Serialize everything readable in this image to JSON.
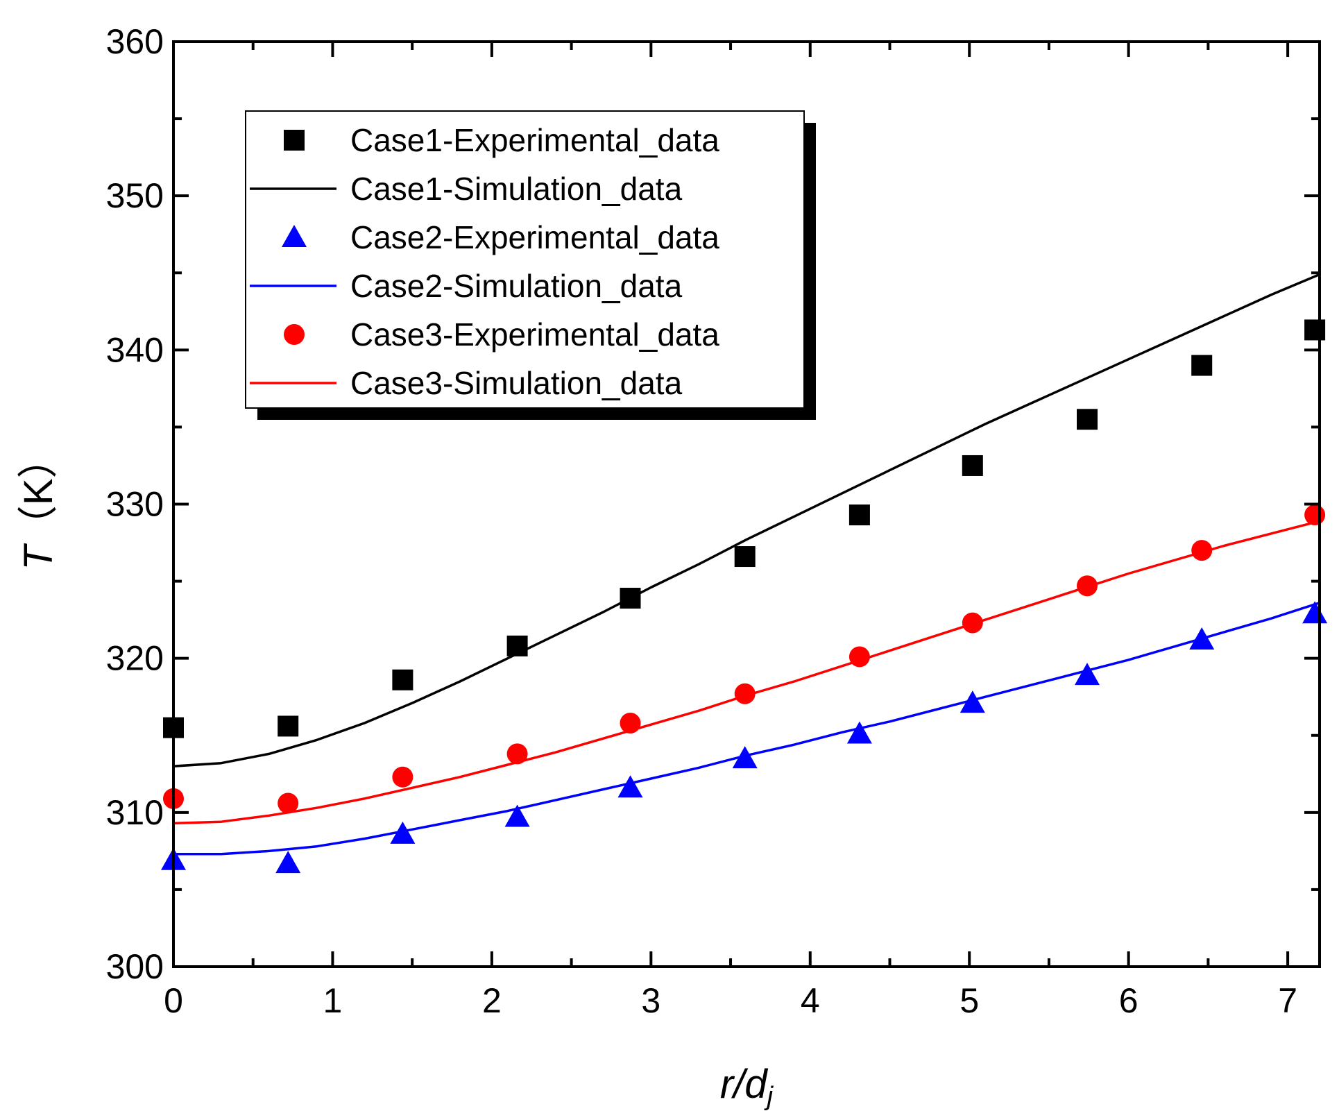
{
  "chart_data": {
    "type": "line",
    "xlabel": {
      "var": "r/d",
      "sub": "j"
    },
    "ylabel": {
      "var": "T",
      "unit": "（K）"
    },
    "xlim": [
      0,
      7.2
    ],
    "ylim": [
      300,
      360
    ],
    "xticks": [
      "0",
      "1",
      "2",
      "3",
      "4",
      "5",
      "6",
      "7"
    ],
    "yticks": [
      "300",
      "310",
      "320",
      "330",
      "340",
      "350",
      "360"
    ],
    "legend_position": "top-left",
    "colors": {
      "case1": "#000000",
      "case2": "#0000ff",
      "case3": "#ff0000"
    },
    "series": [
      {
        "name": "Case1-Experimental_data",
        "kind": "scatter",
        "marker": "square",
        "color": "#000000",
        "x": [
          0,
          0.72,
          1.44,
          2.16,
          2.87,
          3.59,
          4.31,
          5.02,
          5.74,
          6.46,
          7.17
        ],
        "y": [
          315.5,
          315.6,
          318.6,
          320.8,
          323.9,
          326.6,
          329.3,
          332.5,
          335.5,
          339.0,
          341.3
        ]
      },
      {
        "name": "Case1-Simulation_data",
        "kind": "line",
        "color": "#000000",
        "x": [
          0,
          0.3,
          0.6,
          0.9,
          1.2,
          1.5,
          1.8,
          2.1,
          2.4,
          2.7,
          3.0,
          3.3,
          3.6,
          3.9,
          4.2,
          4.5,
          4.8,
          5.1,
          5.4,
          5.7,
          6.0,
          6.3,
          6.6,
          6.9,
          7.2
        ],
        "y": [
          313.0,
          313.2,
          313.8,
          314.7,
          315.8,
          317.1,
          318.5,
          320.0,
          321.5,
          323.0,
          324.6,
          326.1,
          327.7,
          329.2,
          330.7,
          332.2,
          333.7,
          335.2,
          336.6,
          338.0,
          339.4,
          340.8,
          342.2,
          343.6,
          344.9
        ]
      },
      {
        "name": "Case2-Experimental_data",
        "kind": "scatter",
        "marker": "triangle",
        "color": "#0000ff",
        "x": [
          0,
          0.72,
          1.44,
          2.16,
          2.87,
          3.59,
          4.31,
          5.02,
          5.74,
          6.46,
          7.17
        ],
        "y": [
          306.9,
          306.7,
          308.6,
          309.7,
          311.6,
          313.5,
          315.1,
          317.1,
          318.9,
          321.2,
          322.9
        ]
      },
      {
        "name": "Case2-Simulation_data",
        "kind": "line",
        "color": "#0000ff",
        "x": [
          0,
          0.3,
          0.6,
          0.9,
          1.2,
          1.5,
          1.8,
          2.1,
          2.4,
          2.7,
          3.0,
          3.3,
          3.6,
          3.9,
          4.2,
          4.5,
          4.8,
          5.1,
          5.4,
          5.7,
          6.0,
          6.3,
          6.6,
          6.9,
          7.2
        ],
        "y": [
          307.3,
          307.3,
          307.5,
          307.8,
          308.3,
          308.9,
          309.5,
          310.1,
          310.8,
          311.5,
          312.2,
          312.9,
          313.7,
          314.4,
          315.2,
          315.9,
          316.7,
          317.5,
          318.3,
          319.1,
          319.9,
          320.8,
          321.7,
          322.6,
          323.6
        ]
      },
      {
        "name": "Case3-Experimental_data",
        "kind": "scatter",
        "marker": "circle",
        "color": "#ff0000",
        "x": [
          0,
          0.72,
          1.44,
          2.16,
          2.87,
          3.59,
          4.31,
          5.02,
          5.74,
          6.46,
          7.17
        ],
        "y": [
          310.9,
          310.6,
          312.3,
          313.8,
          315.8,
          317.7,
          320.1,
          322.3,
          324.7,
          327.0,
          329.3
        ]
      },
      {
        "name": "Case3-Simulation_data",
        "kind": "line",
        "color": "#ff0000",
        "x": [
          0,
          0.3,
          0.6,
          0.9,
          1.2,
          1.5,
          1.8,
          2.1,
          2.4,
          2.7,
          3.0,
          3.3,
          3.6,
          3.9,
          4.2,
          4.5,
          4.8,
          5.1,
          5.4,
          5.7,
          6.0,
          6.3,
          6.6,
          6.9,
          7.2
        ],
        "y": [
          309.3,
          309.4,
          309.8,
          310.3,
          310.9,
          311.6,
          312.3,
          313.1,
          313.9,
          314.8,
          315.7,
          316.6,
          317.6,
          318.5,
          319.5,
          320.5,
          321.5,
          322.5,
          323.5,
          324.5,
          325.5,
          326.4,
          327.3,
          328.1,
          328.9
        ]
      }
    ]
  }
}
